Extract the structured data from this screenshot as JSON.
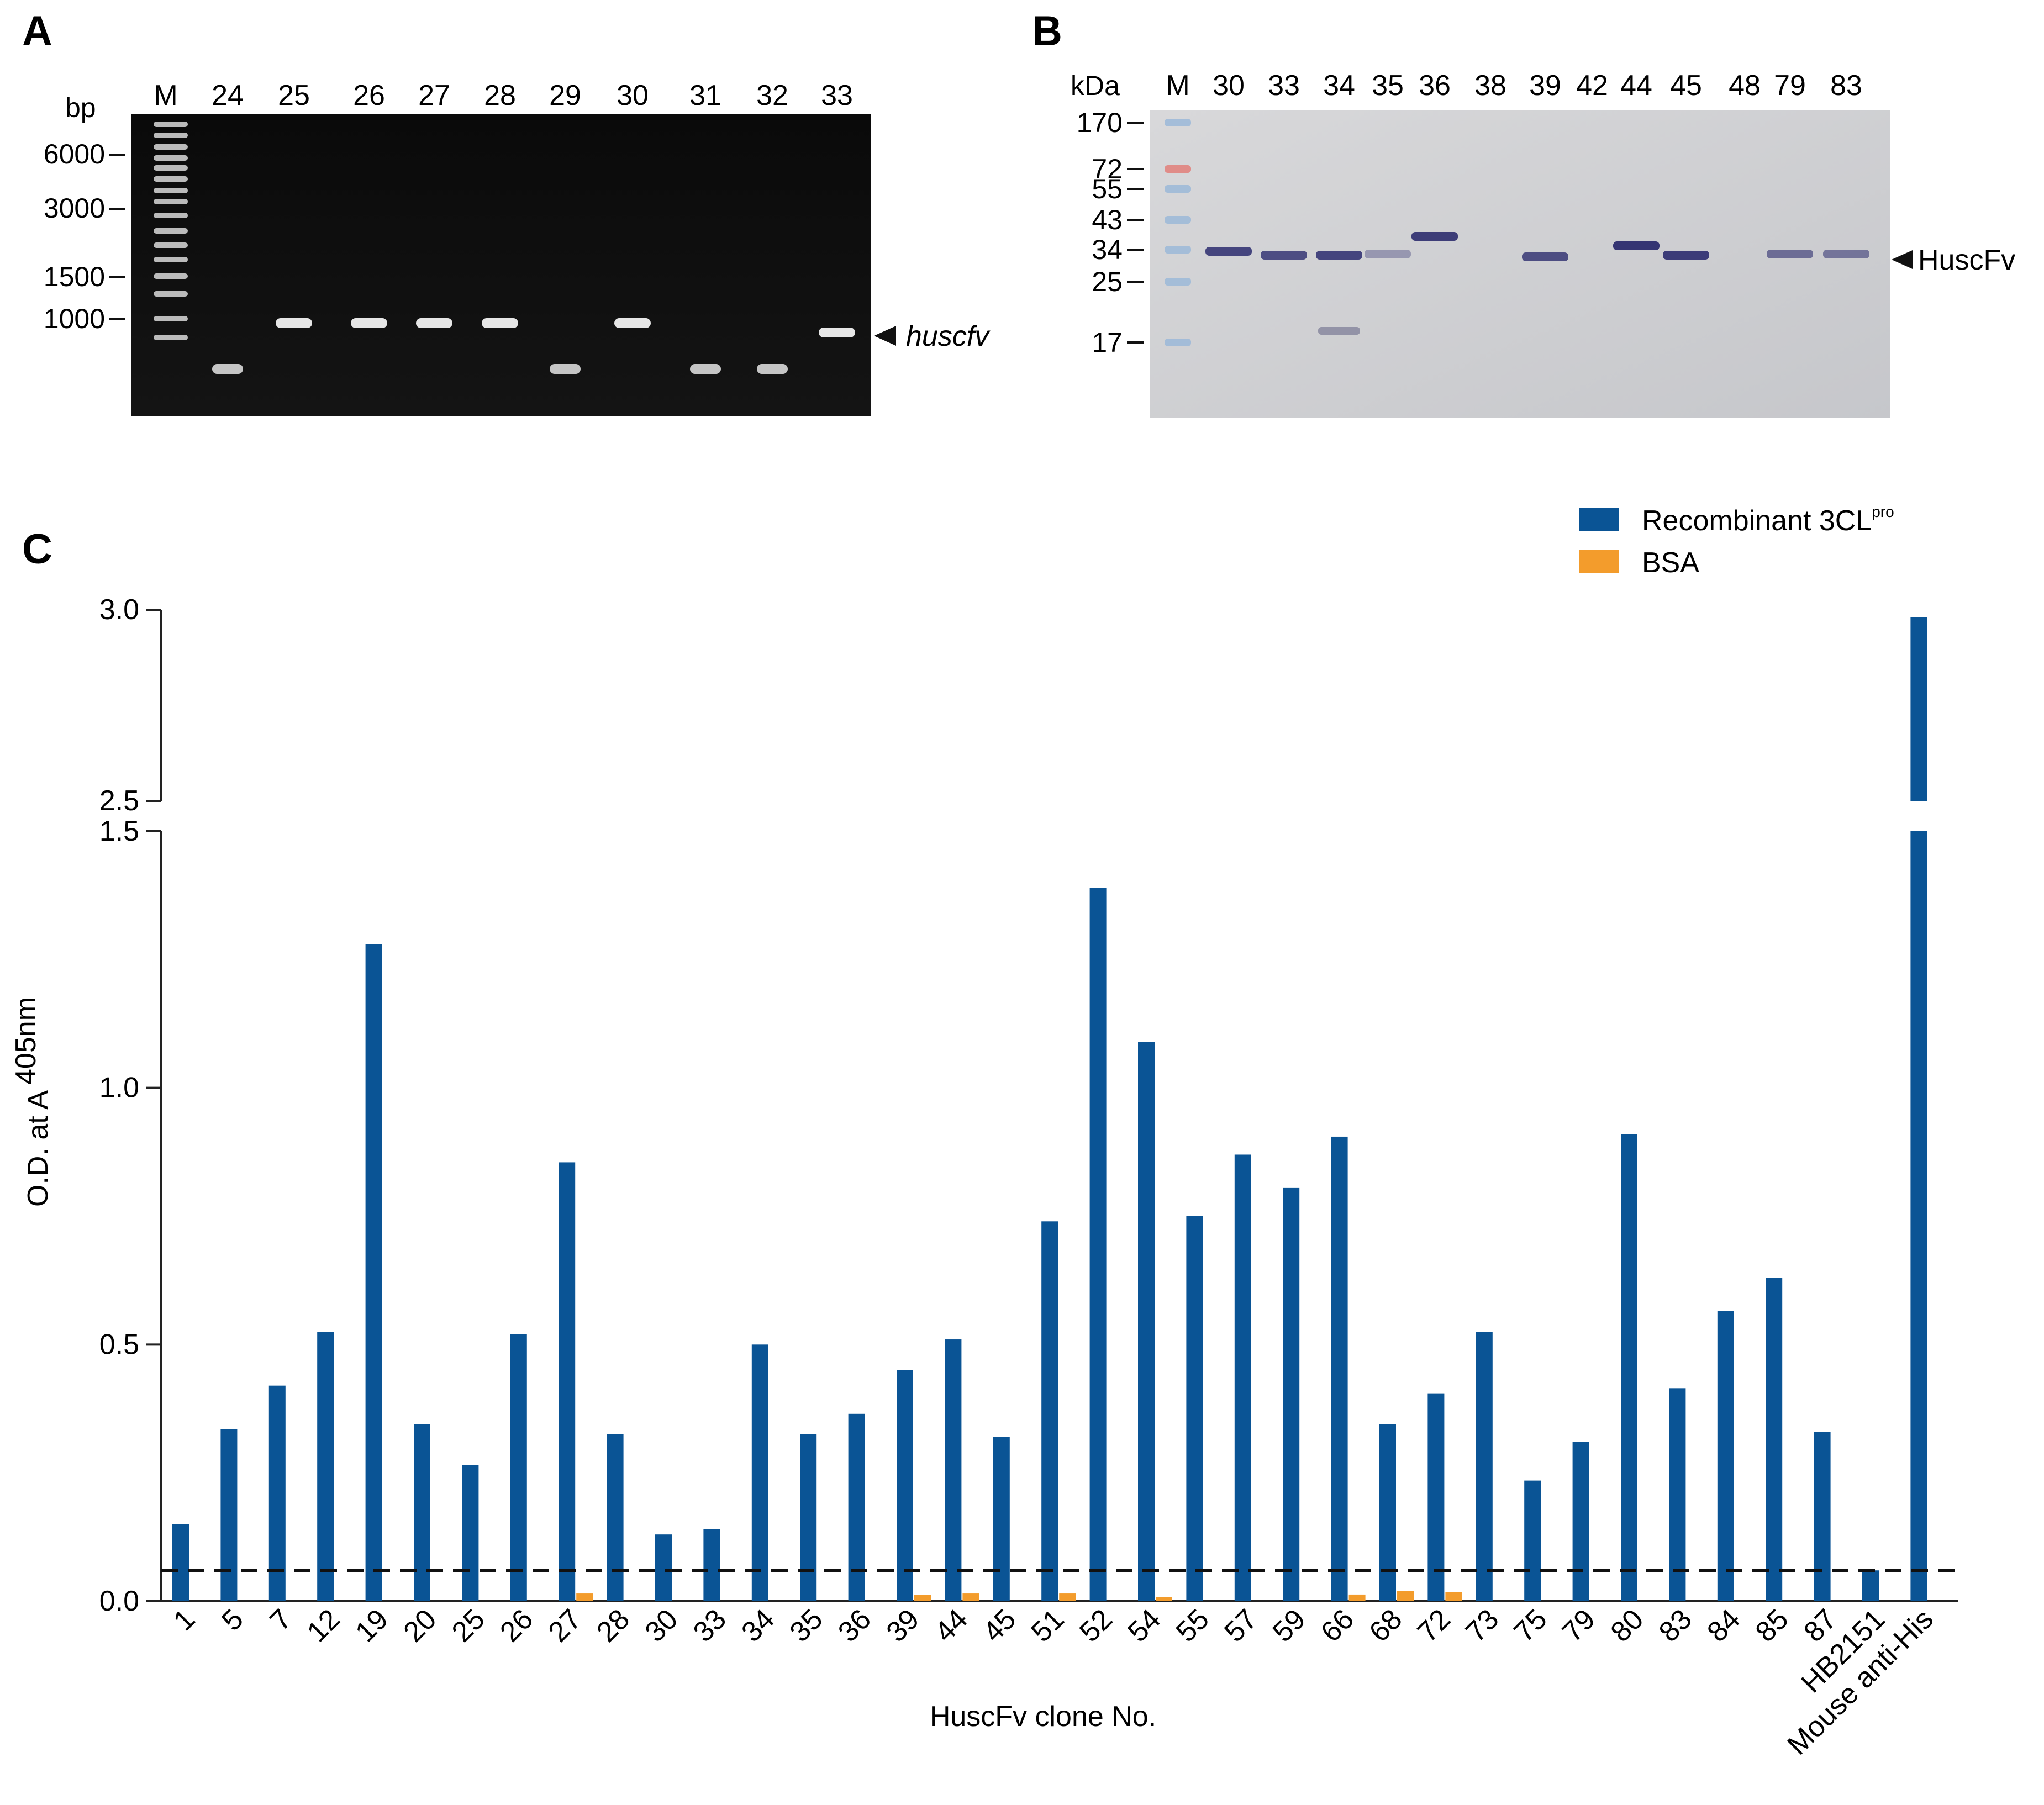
{
  "panel_a": {
    "panel_label": "A",
    "unit_label": "bp",
    "marker_lane_label": "M",
    "lane_labels": [
      "24",
      "25",
      "26",
      "27",
      "28",
      "29",
      "30",
      "31",
      "32",
      "33"
    ],
    "size_marks": [
      "6000",
      "3000",
      "1500",
      "1000"
    ],
    "arrow_label": "huscfv",
    "lane_bands": [
      0,
      1,
      1,
      1,
      1,
      0,
      1,
      0,
      0,
      1
    ]
  },
  "panel_b": {
    "panel_label": "B",
    "unit_label": "kDa",
    "marker_lane_label": "M",
    "lane_labels": [
      "30",
      "33",
      "34",
      "35",
      "36",
      "38",
      "39",
      "42",
      "44",
      "45",
      "48",
      "79",
      "83"
    ],
    "size_marks": [
      "170",
      "72",
      "55",
      "43",
      "34",
      "25",
      "17"
    ],
    "arrow_label": "HuscFv"
  },
  "chart_data": {
    "type": "bar",
    "panel_label": "C",
    "xlabel": "HuscFv clone No.",
    "ylabel_main": "O.D. at A",
    "ylabel_sub": "405nm",
    "y_axis": {
      "segments": [
        [
          0,
          1.5
        ],
        [
          2.5,
          3.0
        ]
      ],
      "ticks": [
        "0.0",
        "0.5",
        "1.0",
        "1.5",
        "2.5",
        "3.0"
      ],
      "broken": true
    },
    "cutoff_line": 0.06,
    "legend_position": "top-right",
    "categories": [
      "1",
      "5",
      "7",
      "12",
      "19",
      "20",
      "25",
      "26",
      "27",
      "28",
      "30",
      "33",
      "34",
      "35",
      "36",
      "39",
      "44",
      "45",
      "51",
      "52",
      "54",
      "55",
      "57",
      "59",
      "66",
      "68",
      "72",
      "73",
      "75",
      "79",
      "80",
      "83",
      "84",
      "85",
      "87",
      "HB2151",
      "Mouse anti-His"
    ],
    "series": [
      {
        "name": "Recombinant 3CL",
        "name_superscript": "pro",
        "color": "#0a5495",
        "values": [
          0.15,
          0.335,
          0.42,
          0.525,
          1.28,
          0.345,
          0.265,
          0.52,
          0.855,
          0.325,
          0.13,
          0.14,
          0.5,
          0.325,
          0.365,
          0.45,
          0.51,
          0.32,
          0.74,
          1.39,
          1.09,
          0.75,
          0.87,
          0.805,
          0.905,
          0.345,
          0.405,
          0.525,
          0.235,
          0.31,
          0.91,
          0.415,
          0.565,
          0.63,
          0.33,
          0.06,
          2.98
        ]
      },
      {
        "name": "BSA",
        "color": "#f39c2c",
        "values": [
          0,
          0,
          0,
          0,
          0,
          0,
          0,
          0,
          0.015,
          0,
          0,
          0,
          0,
          0,
          0,
          0.012,
          0.015,
          0,
          0.015,
          0,
          0.005,
          0,
          0,
          0,
          0.013,
          0.02,
          0.018,
          0,
          0,
          0,
          0,
          0,
          0,
          0,
          0,
          0,
          0
        ]
      }
    ]
  }
}
